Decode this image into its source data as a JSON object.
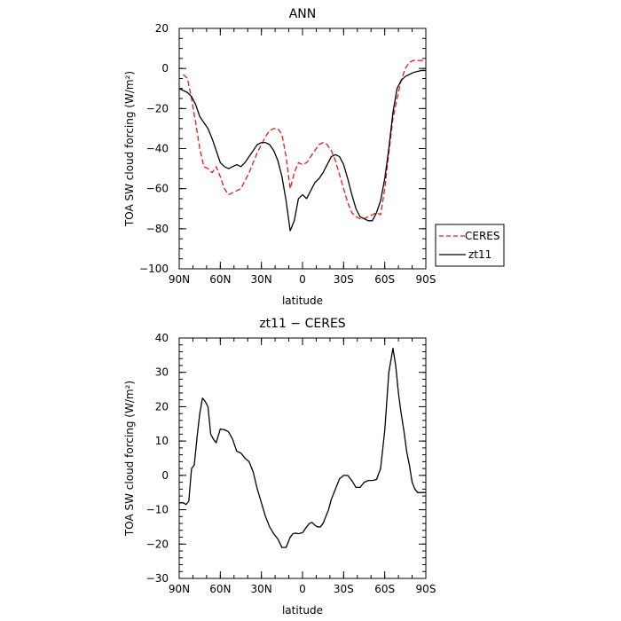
{
  "chart_data": [
    {
      "type": "line",
      "title": "ANN",
      "xlabel": "latitude",
      "ylabel": "TOA SW cloud forcing (W/m²)",
      "x_tick_labels": [
        "90N",
        "60N",
        "30N",
        "0",
        "30S",
        "60S",
        "90S"
      ],
      "x_ticks": [
        90,
        60,
        30,
        0,
        -30,
        -60,
        -90
      ],
      "xlim": [
        90,
        -90
      ],
      "ylim": [
        -100,
        20
      ],
      "y_ticks": [
        -100,
        -80,
        -60,
        -40,
        -20,
        0,
        20
      ],
      "y_tick_labels": [
        "−100",
        "−80",
        "−60",
        "−40",
        "−20",
        "0",
        "20"
      ],
      "grid": false,
      "legend_placement": "right",
      "series": [
        {
          "name": "CERES",
          "color": "#e31a1c",
          "dash": true,
          "x": [
            87,
            84,
            81,
            78,
            75,
            72,
            69,
            66,
            63,
            60,
            57,
            54,
            51,
            48,
            45,
            42,
            39,
            36,
            33,
            30,
            27,
            24,
            21,
            18,
            15,
            12,
            9,
            6,
            3,
            0,
            -3,
            -6,
            -9,
            -12,
            -15,
            -18,
            -21,
            -24,
            -27,
            -30,
            -33,
            -36,
            -39,
            -42,
            -45,
            -48,
            -51,
            -54,
            -57,
            -60,
            -63,
            -66,
            -69,
            -72,
            -75,
            -78,
            -81,
            -84,
            -87,
            -90
          ],
          "y": [
            -3,
            -5,
            -15,
            -27,
            -40,
            -49,
            -50,
            -52,
            -49,
            -54,
            -60,
            -63,
            -62,
            -61,
            -60,
            -56,
            -52,
            -47,
            -42,
            -38,
            -34,
            -31,
            -30,
            -30,
            -33,
            -44,
            -60,
            -52,
            -47,
            -48,
            -47,
            -44,
            -41,
            -38,
            -37,
            -38,
            -41,
            -46,
            -53,
            -60,
            -67,
            -72,
            -74,
            -75,
            -75,
            -74,
            -73,
            -72,
            -73,
            -60,
            -42,
            -25,
            -15,
            -6,
            0,
            3,
            4,
            4,
            4,
            4
          ]
        },
        {
          "name": "zt11",
          "color": "#000000",
          "dash": false,
          "x": [
            90,
            87,
            84,
            81,
            78,
            75,
            72,
            69,
            66,
            63,
            60,
            57,
            54,
            51,
            48,
            45,
            42,
            39,
            36,
            33,
            30,
            27,
            24,
            21,
            18,
            15,
            12,
            9,
            6,
            3,
            0,
            -3,
            -6,
            -9,
            -12,
            -15,
            -18,
            -21,
            -24,
            -27,
            -30,
            -33,
            -36,
            -39,
            -42,
            -45,
            -48,
            -51,
            -54,
            -57,
            -60,
            -63,
            -66,
            -69,
            -72,
            -75,
            -78,
            -81,
            -84,
            -87,
            -90
          ],
          "y": [
            -10,
            -11,
            -12,
            -14,
            -18,
            -24,
            -27,
            -30,
            -35,
            -41,
            -47,
            -49,
            -50,
            -49,
            -48,
            -49,
            -47,
            -44,
            -41,
            -38,
            -37,
            -37,
            -38,
            -41,
            -46,
            -54,
            -66,
            -81,
            -76,
            -65,
            -63,
            -65,
            -61,
            -57,
            -55,
            -52,
            -48,
            -44,
            -43,
            -44,
            -48,
            -55,
            -63,
            -70,
            -74,
            -75,
            -76,
            -76,
            -72,
            -66,
            -55,
            -40,
            -22,
            -10,
            -6,
            -4,
            -3,
            -2,
            -1.5,
            -1,
            -1
          ]
        }
      ]
    },
    {
      "type": "line",
      "title": "zt11 − CERES",
      "xlabel": "latitude",
      "ylabel": "TOA SW cloud forcing (W/m²)",
      "x_tick_labels": [
        "90N",
        "60N",
        "30N",
        "0",
        "30S",
        "60S",
        "90S"
      ],
      "x_ticks": [
        90,
        60,
        30,
        0,
        -30,
        -60,
        -90
      ],
      "xlim": [
        90,
        -90
      ],
      "ylim": [
        -30,
        40
      ],
      "y_ticks": [
        -30,
        -20,
        -10,
        0,
        10,
        20,
        30,
        40
      ],
      "y_tick_labels": [
        "−30",
        "−20",
        "−10",
        "0",
        "10",
        "20",
        "30",
        "40"
      ],
      "grid": false,
      "series": [
        {
          "name": "",
          "color": "#000000",
          "dash": false,
          "x": [
            90,
            87,
            85,
            83,
            81,
            79,
            77,
            75,
            73,
            71,
            69,
            67,
            65,
            63,
            60,
            57,
            54,
            51,
            48,
            45,
            42,
            39,
            36,
            33,
            30,
            27,
            24,
            21,
            18,
            15,
            12,
            9,
            7,
            5,
            3,
            1,
            0,
            -3,
            -5,
            -7,
            -9,
            -11,
            -13,
            -15,
            -17,
            -19,
            -21,
            -24,
            -27,
            -30,
            -33,
            -36,
            -39,
            -42,
            -45,
            -48,
            -51,
            -54,
            -57,
            -60,
            -63,
            -66,
            -68,
            -70,
            -72,
            -74,
            -76,
            -78,
            -80,
            -82,
            -84,
            -86,
            -88,
            -90
          ],
          "y": [
            -8,
            -8,
            -8.5,
            -7.5,
            2,
            3,
            11,
            18,
            22.5,
            21.5,
            20,
            12,
            10.5,
            9.5,
            13.5,
            13.3,
            12.7,
            10.5,
            7,
            6.5,
            5,
            4,
            1,
            -4,
            -8,
            -12,
            -15,
            -17,
            -18.5,
            -21,
            -21,
            -18,
            -17,
            -16.8,
            -17,
            -16.8,
            -16.7,
            -15,
            -14,
            -13.7,
            -14.5,
            -15,
            -15,
            -14,
            -12,
            -10,
            -7,
            -4,
            -1,
            0,
            0,
            -1.5,
            -3.5,
            -3.5,
            -2,
            -1.5,
            -1.5,
            -1.2,
            2,
            13,
            30,
            37,
            32,
            24,
            18,
            13,
            7,
            3,
            -2,
            -4,
            -5,
            -5,
            -5,
            -5
          ]
        }
      ]
    }
  ],
  "legend": {
    "items": [
      {
        "label": "CERES",
        "color": "#e31a1c",
        "dash": true
      },
      {
        "label": "zt11",
        "color": "#000000",
        "dash": false
      }
    ]
  }
}
